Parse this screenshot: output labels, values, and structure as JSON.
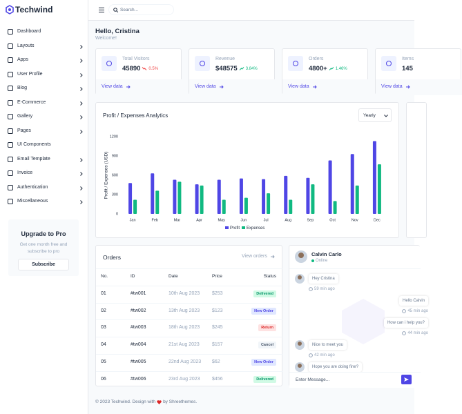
{
  "sidebar": {
    "brand": "Techwind",
    "menu": [
      {
        "label": "Dashboard",
        "submenu": false
      },
      {
        "label": "Layouts",
        "submenu": true
      },
      {
        "label": "Apps",
        "submenu": true
      },
      {
        "label": "User Profile",
        "submenu": true
      },
      {
        "label": "Blog",
        "submenu": true
      },
      {
        "label": "E-Commerce",
        "submenu": true
      },
      {
        "label": "Gallery",
        "submenu": true
      },
      {
        "label": "Pages",
        "submenu": true
      },
      {
        "label": "UI Components",
        "submenu": false
      },
      {
        "label": "Email Template",
        "submenu": true
      },
      {
        "label": "Invoice",
        "submenu": true
      },
      {
        "label": "Authentication",
        "submenu": true
      },
      {
        "label": "Miscellaneous",
        "submenu": true
      }
    ],
    "upgrade": {
      "title": "Upgrade to Pro",
      "text": "Get one month free and subscribe to pro",
      "button": "Subscribe"
    }
  },
  "header": {
    "search_placeholder": "Search..."
  },
  "greeting": {
    "title": "Hello, Cristina",
    "subtitle": "Welcome!"
  },
  "stats": [
    {
      "label": "Total Visitors",
      "value": "45890",
      "change": "0.5%",
      "trend": "down",
      "link": "View data"
    },
    {
      "label": "Revenue",
      "value": "$48575",
      "change": "3.84%",
      "trend": "up",
      "link": "View data"
    },
    {
      "label": "Orders",
      "value": "4800+",
      "change": "1.46%",
      "trend": "up",
      "link": "View data"
    },
    {
      "label": "Items",
      "value": "145",
      "change": null,
      "trend": "up",
      "link": "View data"
    }
  ],
  "chart_data": {
    "type": "bar",
    "title": "Profit / Expenses Analytics",
    "filter": "Yearly",
    "y_label": "Profit / Expenses (USD)",
    "categories": [
      "Jan",
      "Feb",
      "Mar",
      "Apr",
      "May",
      "Jun",
      "Jul",
      "Aug",
      "Sep",
      "Oct",
      "Nov",
      "Dec"
    ],
    "series": [
      {
        "name": "Profit",
        "color": "#4f46e5",
        "values": [
          480,
          630,
          530,
          460,
          530,
          550,
          540,
          590,
          560,
          830,
          930,
          1130
        ]
      },
      {
        "name": "Expenses",
        "color": "#10b981",
        "values": [
          220,
          360,
          500,
          440,
          220,
          250,
          320,
          220,
          460,
          200,
          440,
          770
        ]
      }
    ],
    "ylim": [
      0,
      1200
    ],
    "yticks": [
      0,
      300,
      600,
      900,
      1200
    ],
    "grid": false,
    "legend": "bottom"
  },
  "orders": {
    "title": "Orders",
    "link": "View orders",
    "columns": [
      "No.",
      "ID",
      "Date",
      "Price",
      "Status"
    ],
    "rows": [
      {
        "no": "01",
        "id": "#tw001",
        "date": "10th Aug 2023",
        "price": "$253",
        "status": "Delivered",
        "status_color": "green"
      },
      {
        "no": "02",
        "id": "#tw002",
        "date": "13th Aug 2023",
        "price": "$123",
        "status": "New Order",
        "status_color": "indigo"
      },
      {
        "no": "03",
        "id": "#tw003",
        "date": "18th Aug 2023",
        "price": "$245",
        "status": "Return",
        "status_color": "red"
      },
      {
        "no": "04",
        "id": "#tw004",
        "date": "21st Aug 2023",
        "price": "$157",
        "status": "Cancel",
        "status_color": "gray"
      },
      {
        "no": "05",
        "id": "#tw005",
        "date": "22nd Aug 2023",
        "price": "$62",
        "status": "New Order",
        "status_color": "indigo"
      },
      {
        "no": "06",
        "id": "#tw006",
        "date": "23rd Aug 2023",
        "price": "$456",
        "status": "Delivered",
        "status_color": "green"
      }
    ]
  },
  "chat": {
    "name": "Calvin Carlo",
    "status": "Online",
    "messages": [
      {
        "text": "Hey Cristina",
        "time": "59 min ago",
        "side": "left"
      },
      {
        "text": "Hello Calvin",
        "time": "45 min ago",
        "side": "right"
      },
      {
        "text": "How can i help you?",
        "time": "44 min ago",
        "side": "right"
      },
      {
        "text": "Nice to meet you",
        "time": "42 min ago",
        "side": "left"
      },
      {
        "text": "Hope you are doing fine?",
        "time": null,
        "side": "left"
      }
    ],
    "input_placeholder": "Enter Message..."
  },
  "footer": {
    "text": "© 2023 Techwind. Design with",
    "credit": "by Shreethemes."
  }
}
